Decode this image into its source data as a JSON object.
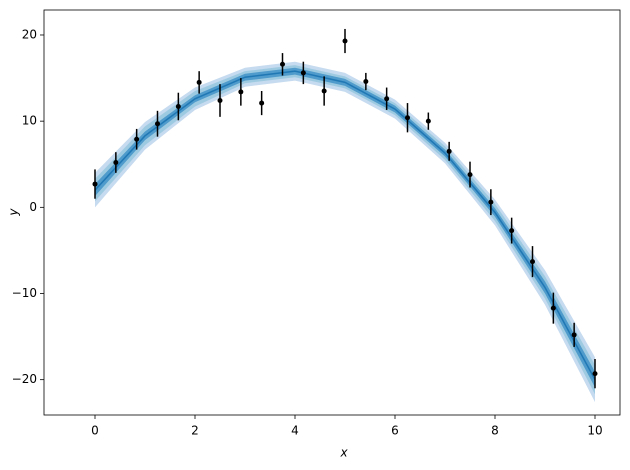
{
  "chart_data": {
    "type": "scatter",
    "xlabel": "x",
    "ylabel": "y",
    "xlim": [
      -1.02,
      10.5
    ],
    "ylim": [
      -24.1,
      22.9
    ],
    "xticks": [
      0,
      2,
      4,
      6,
      8,
      10
    ],
    "yticks": [
      {
        "value": -20,
        "label": "−20"
      },
      {
        "value": -10,
        "label": "−10"
      },
      0,
      10,
      20
    ],
    "curve": {
      "x": [
        0,
        1,
        2,
        3,
        4,
        5,
        6,
        7,
        8,
        9,
        10
      ],
      "mean": [
        2.0,
        8.3,
        12.6,
        15.1,
        15.8,
        14.5,
        11.4,
        6.3,
        -0.6,
        -9.3,
        -20.0
      ],
      "color": "#1f77b4",
      "bands": [
        {
          "color": "#c6dbef",
          "lower": [
            0.0,
            6.7,
            11.3,
            14.0,
            14.7,
            13.4,
            10.3,
            5.1,
            -2.1,
            -11.3,
            -22.6
          ],
          "upper": [
            4.0,
            9.9,
            13.9,
            16.2,
            16.9,
            15.6,
            12.5,
            7.5,
            0.9,
            -7.3,
            -17.4
          ]
        },
        {
          "color": "#9ecae1",
          "lower": [
            0.7,
            7.2,
            11.7,
            14.4,
            15.1,
            13.8,
            10.7,
            5.5,
            -1.6,
            -10.6,
            -21.7
          ],
          "upper": [
            3.3,
            9.4,
            13.5,
            15.8,
            16.5,
            15.2,
            12.1,
            7.1,
            0.4,
            -8.0,
            -18.3
          ]
        },
        {
          "color": "#4f9bcb",
          "lower": [
            1.3,
            7.8,
            12.2,
            14.7,
            15.4,
            14.1,
            11.0,
            5.9,
            -1.1,
            -10.0,
            -20.9
          ],
          "upper": [
            2.7,
            8.8,
            13.0,
            15.5,
            16.2,
            14.9,
            11.8,
            6.7,
            -0.1,
            -8.6,
            -19.1
          ]
        }
      ]
    },
    "series": [
      {
        "color": "#000000",
        "x": [
          0,
          0.417,
          0.833,
          1.25,
          1.667,
          2.083,
          2.5,
          2.917,
          3.333,
          3.75,
          4.167,
          4.583,
          5.0,
          5.417,
          5.833,
          6.25,
          6.667,
          7.083,
          7.5,
          7.917,
          8.333,
          8.75,
          9.167,
          9.583,
          10.0
        ],
        "values": [
          2.7,
          5.2,
          7.9,
          9.7,
          11.7,
          14.5,
          12.4,
          13.4,
          12.1,
          16.6,
          15.6,
          13.5,
          19.3,
          14.6,
          12.6,
          10.4,
          10.0,
          6.5,
          3.8,
          0.6,
          -2.7,
          -6.3,
          -11.7,
          -14.8,
          -19.3
        ],
        "errors": [
          1.7,
          1.2,
          1.2,
          1.5,
          1.6,
          1.3,
          1.9,
          1.6,
          1.4,
          1.3,
          1.3,
          1.7,
          1.4,
          1.0,
          1.3,
          1.7,
          1.0,
          1.1,
          1.5,
          1.5,
          1.5,
          1.8,
          1.8,
          1.4,
          1.7
        ]
      }
    ]
  }
}
